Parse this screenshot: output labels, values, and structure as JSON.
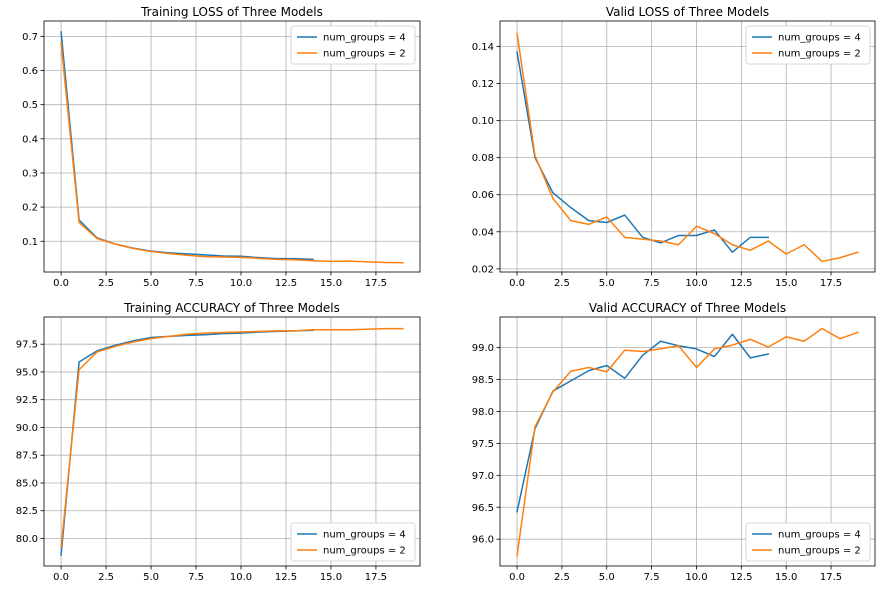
{
  "chart_data": [
    {
      "type": "line",
      "title": "Training LOSS of Three Models",
      "xlabel": "",
      "ylabel": "",
      "xlim": [
        -0.95,
        19.95
      ],
      "ylim": [
        0.01,
        0.745
      ],
      "xticks": [
        0.0,
        2.5,
        5.0,
        7.5,
        10.0,
        12.5,
        15.0,
        17.5
      ],
      "xtick_labels": [
        "0.0",
        "2.5",
        "5.0",
        "7.5",
        "10.0",
        "12.5",
        "15.0",
        "17.5"
      ],
      "yticks": [
        0.1,
        0.2,
        0.3,
        0.4,
        0.5,
        0.6,
        0.7
      ],
      "ytick_labels": [
        "0.1",
        "0.2",
        "0.3",
        "0.4",
        "0.5",
        "0.6",
        "0.7"
      ],
      "grid": true,
      "legend": "top-right",
      "series": [
        {
          "name": "num_groups = 4",
          "color": "#1f77b4",
          "x": [
            0,
            1,
            2,
            3,
            4,
            5,
            6,
            7,
            8,
            9,
            10,
            11,
            12,
            13,
            14
          ],
          "y": [
            0.713,
            0.162,
            0.11,
            0.092,
            0.08,
            0.071,
            0.066,
            0.063,
            0.06,
            0.057,
            0.056,
            0.052,
            0.049,
            0.049,
            0.047
          ]
        },
        {
          "name": "num_groups = 2",
          "color": "#ff7f0e",
          "x": [
            0,
            1,
            2,
            3,
            4,
            5,
            6,
            7,
            8,
            9,
            10,
            11,
            12,
            13,
            14,
            15,
            16,
            17,
            18,
            19
          ],
          "y": [
            0.68,
            0.155,
            0.108,
            0.092,
            0.079,
            0.07,
            0.064,
            0.059,
            0.055,
            0.054,
            0.053,
            0.05,
            0.047,
            0.046,
            0.043,
            0.041,
            0.042,
            0.04,
            0.038,
            0.037
          ]
        }
      ]
    },
    {
      "type": "line",
      "title": "Valid LOSS of Three Models",
      "xlabel": "",
      "ylabel": "",
      "xlim": [
        -0.95,
        19.95
      ],
      "ylim": [
        0.0183,
        0.1537
      ],
      "xticks": [
        0.0,
        2.5,
        5.0,
        7.5,
        10.0,
        12.5,
        15.0,
        17.5
      ],
      "xtick_labels": [
        "0.0",
        "2.5",
        "5.0",
        "7.5",
        "10.0",
        "12.5",
        "15.0",
        "17.5"
      ],
      "yticks": [
        0.02,
        0.04,
        0.06,
        0.08,
        0.1,
        0.12,
        0.14
      ],
      "ytick_labels": [
        "0.02",
        "0.04",
        "0.06",
        "0.08",
        "0.10",
        "0.12",
        "0.14"
      ],
      "grid": true,
      "legend": "top-right",
      "series": [
        {
          "name": "num_groups = 4",
          "color": "#1f77b4",
          "x": [
            0,
            1,
            2,
            3,
            4,
            5,
            6,
            7,
            8,
            9,
            10,
            11,
            12,
            13,
            14
          ],
          "y": [
            0.137,
            0.08,
            0.061,
            0.053,
            0.046,
            0.045,
            0.049,
            0.037,
            0.034,
            0.038,
            0.038,
            0.041,
            0.029,
            0.037,
            0.037
          ]
        },
        {
          "name": "num_groups = 2",
          "color": "#ff7f0e",
          "x": [
            0,
            1,
            2,
            3,
            4,
            5,
            6,
            7,
            8,
            9,
            10,
            11,
            12,
            13,
            14,
            15,
            16,
            17,
            18,
            19
          ],
          "y": [
            0.147,
            0.081,
            0.058,
            0.046,
            0.044,
            0.048,
            0.037,
            0.036,
            0.035,
            0.033,
            0.043,
            0.039,
            0.033,
            0.03,
            0.035,
            0.028,
            0.033,
            0.024,
            0.026,
            0.029
          ]
        }
      ]
    },
    {
      "type": "line",
      "title": "Training ACCURACY of Three Models",
      "xlabel": "",
      "ylabel": "",
      "xlim": [
        -0.95,
        19.95
      ],
      "ylim": [
        77.52,
        99.95
      ],
      "xticks": [
        0.0,
        2.5,
        5.0,
        7.5,
        10.0,
        12.5,
        15.0,
        17.5
      ],
      "xtick_labels": [
        "0.0",
        "2.5",
        "5.0",
        "7.5",
        "10.0",
        "12.5",
        "15.0",
        "17.5"
      ],
      "yticks": [
        80.0,
        82.5,
        85.0,
        87.5,
        90.0,
        92.5,
        95.0,
        97.5
      ],
      "ytick_labels": [
        "80.0",
        "82.5",
        "85.0",
        "87.5",
        "90.0",
        "92.5",
        "95.0",
        "97.5"
      ],
      "grid": true,
      "legend": "bottom-right",
      "series": [
        {
          "name": "num_groups = 4",
          "color": "#1f77b4",
          "x": [
            0,
            1,
            2,
            3,
            4,
            5,
            6,
            7,
            8,
            9,
            10,
            11,
            12,
            13,
            14
          ],
          "y": [
            78.5,
            95.9,
            96.9,
            97.4,
            97.8,
            98.1,
            98.2,
            98.3,
            98.35,
            98.45,
            98.5,
            98.6,
            98.65,
            98.7,
            98.75
          ]
        },
        {
          "name": "num_groups = 2",
          "color": "#ff7f0e",
          "x": [
            0,
            1,
            2,
            3,
            4,
            5,
            6,
            7,
            8,
            9,
            10,
            11,
            12,
            13,
            14,
            15,
            16,
            17,
            18,
            19
          ],
          "y": [
            79.2,
            95.2,
            96.8,
            97.3,
            97.7,
            98.0,
            98.2,
            98.4,
            98.5,
            98.55,
            98.6,
            98.65,
            98.7,
            98.7,
            98.8,
            98.8,
            98.8,
            98.85,
            98.9,
            98.9
          ]
        }
      ]
    },
    {
      "type": "line",
      "title": "Valid ACCURACY of Three Models",
      "xlabel": "",
      "ylabel": "",
      "xlim": [
        -0.95,
        19.95
      ],
      "ylim": [
        95.58,
        99.48
      ],
      "xticks": [
        0.0,
        2.5,
        5.0,
        7.5,
        10.0,
        12.5,
        15.0,
        17.5
      ],
      "xtick_labels": [
        "0.0",
        "2.5",
        "5.0",
        "7.5",
        "10.0",
        "12.5",
        "15.0",
        "17.5"
      ],
      "yticks": [
        96.0,
        96.5,
        97.0,
        97.5,
        98.0,
        98.5,
        99.0
      ],
      "ytick_labels": [
        "96.0",
        "96.5",
        "97.0",
        "97.5",
        "98.0",
        "98.5",
        "99.0"
      ],
      "grid": true,
      "legend": "bottom-right",
      "series": [
        {
          "name": "num_groups = 4",
          "color": "#1f77b4",
          "x": [
            0,
            1,
            2,
            3,
            4,
            5,
            6,
            7,
            8,
            9,
            10,
            11,
            12,
            13,
            14
          ],
          "y": [
            96.43,
            97.73,
            98.32,
            98.48,
            98.64,
            98.72,
            98.52,
            98.88,
            99.1,
            99.03,
            98.98,
            98.86,
            99.21,
            98.84,
            98.9
          ]
        },
        {
          "name": "num_groups = 2",
          "color": "#ff7f0e",
          "x": [
            0,
            1,
            2,
            3,
            4,
            5,
            6,
            7,
            8,
            9,
            10,
            11,
            12,
            13,
            14,
            15,
            16,
            17,
            18,
            19
          ],
          "y": [
            95.74,
            97.76,
            98.31,
            98.63,
            98.69,
            98.62,
            98.96,
            98.94,
            98.98,
            99.03,
            98.69,
            98.98,
            99.04,
            99.13,
            99.01,
            99.17,
            99.1,
            99.3,
            99.14,
            99.24
          ]
        }
      ]
    }
  ]
}
